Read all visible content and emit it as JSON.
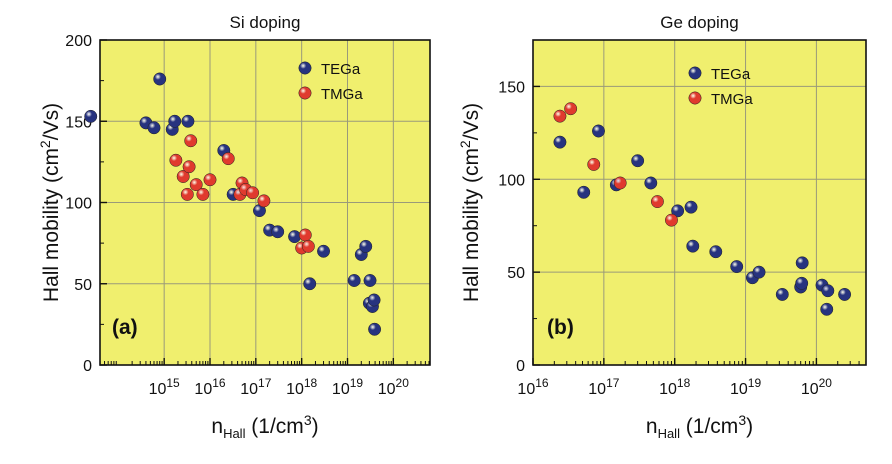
{
  "chart_data": [
    {
      "type": "scatter",
      "panel_tag": "(a)",
      "title": "Si doping",
      "ylabel_main": "Hall mobility (cm",
      "ylabel_sup": "2",
      "ylabel_end": "/Vs)",
      "xlabel_main": "n",
      "xlabel_sub": "Hall",
      "xlabel_unit": " (1/cm",
      "xlabel_sup": "3",
      "xlabel_end": ")",
      "x_scale": "log",
      "xlim_exp": [
        13.6,
        20.8
      ],
      "x_ticks": [
        {
          "base": "10",
          "exp": "15",
          "value_exp": 15
        },
        {
          "base": "10",
          "exp": "16",
          "value_exp": 16
        },
        {
          "base": "10",
          "exp": "17",
          "value_exp": 17
        },
        {
          "base": "10",
          "exp": "18",
          "value_exp": 18
        },
        {
          "base": "10",
          "exp": "19",
          "value_exp": 19
        },
        {
          "base": "10",
          "exp": "20",
          "value_exp": 20
        }
      ],
      "ylim": [
        0,
        200
      ],
      "y_ticks": [
        "0",
        "50",
        "100",
        "150",
        "200"
      ],
      "y_tick_values": [
        0,
        50,
        100,
        150,
        200
      ],
      "grid": true,
      "background": "#f0ef6e",
      "legend_position": "top-right",
      "series": [
        {
          "name": "TEGa",
          "color": "#27337f",
          "points": [
            [
              25000000000000.0,
              153
            ],
            [
              400000000000000.0,
              149
            ],
            [
              600000000000000.0,
              146
            ],
            [
              800000000000000.0,
              176
            ],
            [
              1500000000000000.0,
              145
            ],
            [
              1700000000000000.0,
              150
            ],
            [
              3300000000000000.0,
              150
            ],
            [
              2e+16,
              132
            ],
            [
              3.2e+16,
              105
            ],
            [
              1.2e+17,
              95
            ],
            [
              2e+17,
              83
            ],
            [
              3e+17,
              82
            ],
            [
              7e+17,
              79
            ],
            [
              1.5e+18,
              50
            ],
            [
              3e+18,
              70
            ],
            [
              1.4e+19,
              52
            ],
            [
              2e+19,
              68
            ],
            [
              2.5e+19,
              73
            ],
            [
              3.1e+19,
              52
            ],
            [
              3e+19,
              38
            ],
            [
              3.5e+19,
              36
            ],
            [
              3.8e+19,
              40
            ],
            [
              3.9e+19,
              22
            ]
          ]
        },
        {
          "name": "TMGa",
          "color": "#e03a2e",
          "points": [
            [
              1800000000000000.0,
              126
            ],
            [
              2600000000000000.0,
              116
            ],
            [
              3200000000000000.0,
              105
            ],
            [
              3500000000000000.0,
              122
            ],
            [
              3800000000000000.0,
              138
            ],
            [
              5000000000000000.0,
              111
            ],
            [
              7000000000000000.0,
              105
            ],
            [
              1e+16,
              114
            ],
            [
              2.5e+16,
              127
            ],
            [
              4.5e+16,
              105
            ],
            [
              5e+16,
              112
            ],
            [
              6e+16,
              108
            ],
            [
              8.5e+16,
              106
            ],
            [
              1.5e+17,
              101
            ],
            [
              1e+18,
              72
            ],
            [
              1.2e+18,
              80
            ],
            [
              1.4e+18,
              73
            ]
          ]
        }
      ]
    },
    {
      "type": "scatter",
      "panel_tag": "(b)",
      "title": "Ge doping",
      "ylabel_main": "Hall mobility (cm",
      "ylabel_sup": "2",
      "ylabel_end": "/Vs)",
      "xlabel_main": "n",
      "xlabel_sub": "Hall",
      "xlabel_unit": " (1/cm",
      "xlabel_sup": "3",
      "xlabel_end": ")",
      "x_scale": "log",
      "xlim_exp": [
        16.0,
        20.7
      ],
      "x_ticks": [
        {
          "base": "10",
          "exp": "16",
          "value_exp": 16
        },
        {
          "base": "10",
          "exp": "17",
          "value_exp": 17
        },
        {
          "base": "10",
          "exp": "18",
          "value_exp": 18
        },
        {
          "base": "10",
          "exp": "19",
          "value_exp": 19
        },
        {
          "base": "10",
          "exp": "20",
          "value_exp": 20
        }
      ],
      "ylim": [
        0,
        175
      ],
      "y_ticks": [
        "0",
        "50",
        "100",
        "150"
      ],
      "y_tick_values": [
        0,
        50,
        100,
        150
      ],
      "grid": true,
      "background": "#f0ef6e",
      "legend_position": "top-right",
      "series": [
        {
          "name": "TEGa",
          "color": "#27337f",
          "points": [
            [
              2.4e+16,
              120
            ],
            [
              5.2e+16,
              93
            ],
            [
              8.4e+16,
              126
            ],
            [
              1.5e+17,
              97
            ],
            [
              3e+17,
              110
            ],
            [
              4.6e+17,
              98
            ],
            [
              1.1e+18,
              83
            ],
            [
              1.7e+18,
              85
            ],
            [
              1.8e+18,
              64
            ],
            [
              3.8e+18,
              61
            ],
            [
              7.5e+18,
              53
            ],
            [
              1.25e+19,
              47
            ],
            [
              1.55e+19,
              50
            ],
            [
              3.3e+19,
              38
            ],
            [
              6e+19,
              42
            ],
            [
              6.2e+19,
              44
            ],
            [
              6.3e+19,
              55
            ],
            [
              1.2e+20,
              43
            ],
            [
              1.4e+20,
              30
            ],
            [
              1.45e+20,
              40
            ],
            [
              2.5e+20,
              38
            ]
          ]
        },
        {
          "name": "TMGa",
          "color": "#e03a2e",
          "points": [
            [
              2.4e+16,
              134
            ],
            [
              3.4e+16,
              138
            ],
            [
              7.2e+16,
              108
            ],
            [
              1.7e+17,
              98
            ],
            [
              5.7e+17,
              88
            ],
            [
              9e+17,
              78
            ]
          ]
        }
      ]
    }
  ]
}
